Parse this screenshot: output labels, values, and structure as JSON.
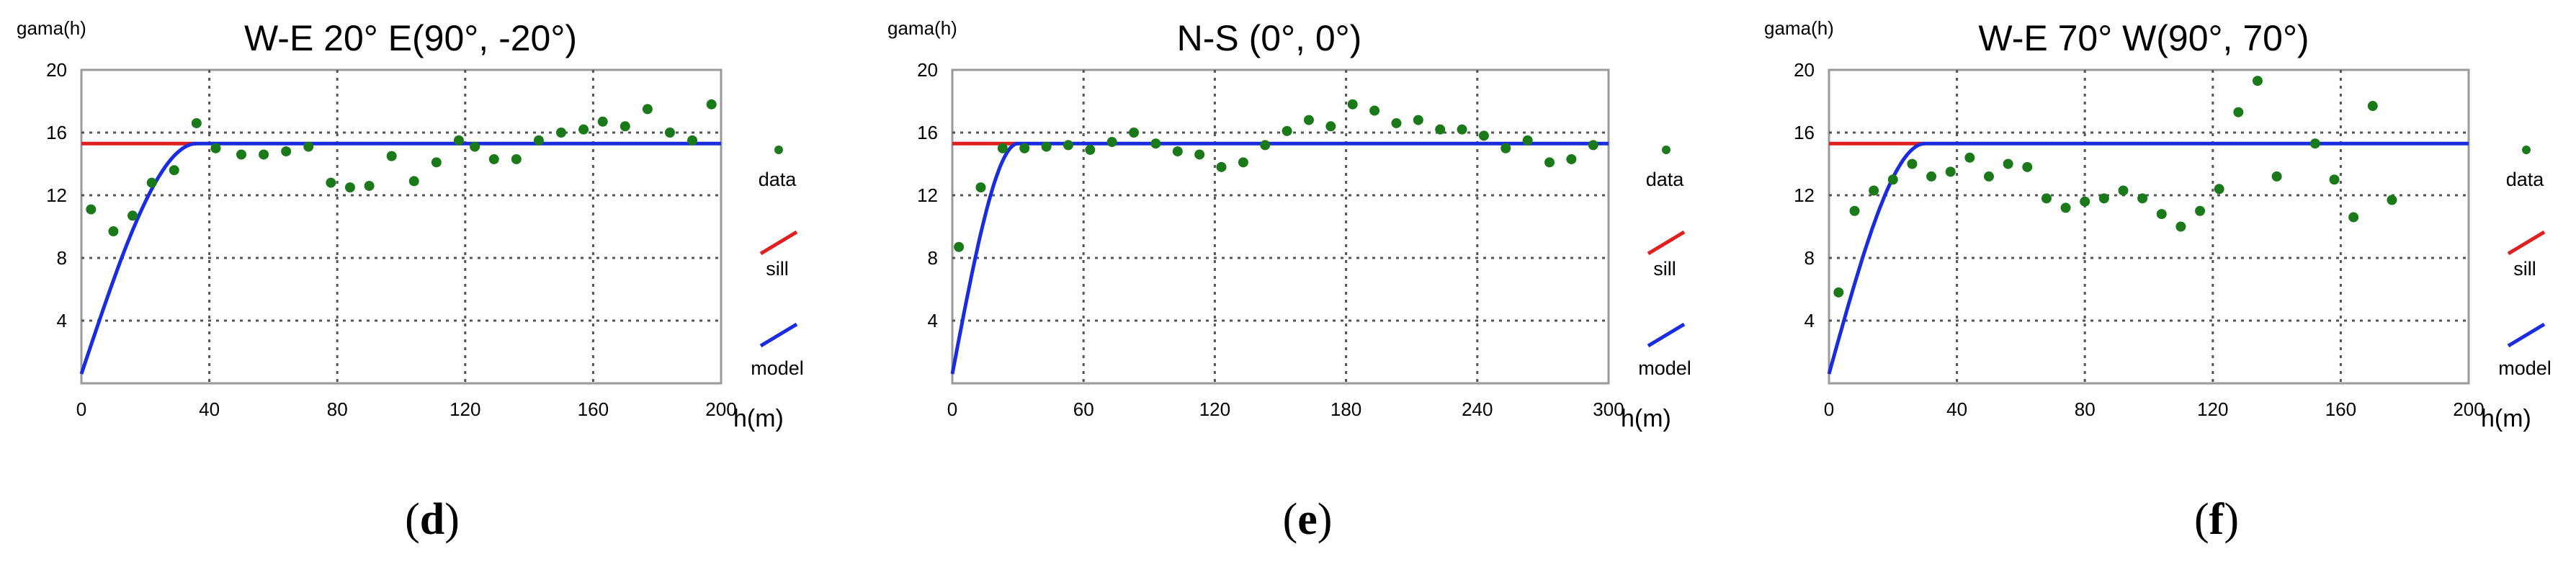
{
  "chart_data": [
    {
      "type": "scatter",
      "panel_label": "d",
      "title": "W-E 20° E(90°, -20°)",
      "ylabel": "gama(h)",
      "xlabel": "h(m)",
      "xlim": [
        0,
        200
      ],
      "ylim": [
        0,
        20
      ],
      "xticks": [
        0,
        40,
        80,
        120,
        160,
        200
      ],
      "yticks": [
        4,
        8,
        12,
        16,
        20
      ],
      "grid": true,
      "legend": "right",
      "sill": 15.3,
      "model_range": 36,
      "series": [
        {
          "name": "data",
          "color": "#1a7a1a",
          "x": [
            3,
            10,
            16,
            22,
            29,
            36,
            42,
            50,
            57,
            64,
            71,
            78,
            84,
            90,
            97,
            104,
            111,
            118,
            123,
            129,
            136,
            143,
            150,
            157,
            163,
            170,
            177,
            184,
            191,
            197
          ],
          "y": [
            11.1,
            9.7,
            10.7,
            12.8,
            13.6,
            16.6,
            15.0,
            14.6,
            14.6,
            14.8,
            15.1,
            12.8,
            12.5,
            12.6,
            14.5,
            12.9,
            14.1,
            15.5,
            15.1,
            14.3,
            14.3,
            15.5,
            16.0,
            16.2,
            16.7,
            16.4,
            17.5,
            16.0,
            15.5,
            17.8
          ]
        },
        {
          "name": "sill",
          "color": "#e02020"
        },
        {
          "name": "model",
          "color": "#1a2ce0"
        }
      ]
    },
    {
      "type": "scatter",
      "panel_label": "e",
      "title": "N-S (0°, 0°)",
      "ylabel": "gama(h)",
      "xlabel": "h(m)",
      "xlim": [
        0,
        300
      ],
      "ylim": [
        0,
        20
      ],
      "xticks": [
        0,
        60,
        120,
        180,
        240,
        300
      ],
      "yticks": [
        4,
        8,
        12,
        16,
        20
      ],
      "grid": true,
      "legend": "right",
      "sill": 15.3,
      "model_range": 30,
      "series": [
        {
          "name": "data",
          "color": "#1a7a1a",
          "x": [
            3,
            13,
            23,
            33,
            43,
            53,
            63,
            73,
            83,
            93,
            103,
            113,
            123,
            133,
            143,
            153,
            163,
            173,
            183,
            193,
            203,
            213,
            223,
            233,
            243,
            253,
            263,
            273,
            283,
            293
          ],
          "y": [
            8.7,
            12.5,
            15.0,
            15.0,
            15.1,
            15.2,
            14.9,
            15.4,
            16.0,
            15.3,
            14.8,
            14.6,
            13.8,
            14.1,
            15.2,
            16.1,
            16.8,
            16.4,
            17.8,
            17.4,
            16.6,
            16.8,
            16.2,
            16.2,
            15.8,
            15.0,
            15.5,
            14.1,
            14.3,
            15.2
          ]
        },
        {
          "name": "sill",
          "color": "#e02020"
        },
        {
          "name": "model",
          "color": "#1a2ce0"
        }
      ]
    },
    {
      "type": "scatter",
      "panel_label": "f",
      "title": "W-E 70° W(90°, 70°)",
      "ylabel": "gama(h)",
      "xlabel": "h(m)",
      "xlim": [
        0,
        200
      ],
      "ylim": [
        0,
        20
      ],
      "xticks": [
        0,
        40,
        80,
        120,
        160,
        200
      ],
      "yticks": [
        4,
        8,
        12,
        16,
        20
      ],
      "grid": true,
      "legend": "right",
      "sill": 15.3,
      "model_range": 30,
      "series": [
        {
          "name": "data",
          "color": "#1a7a1a",
          "x": [
            3,
            8,
            14,
            20,
            26,
            32,
            38,
            44,
            50,
            56,
            62,
            68,
            74,
            80,
            86,
            92,
            98,
            104,
            110,
            116,
            122,
            128,
            134,
            140,
            152,
            158,
            164,
            170,
            176
          ],
          "y": [
            5.8,
            11.0,
            12.3,
            13.0,
            14.0,
            13.2,
            13.5,
            14.4,
            13.2,
            14.0,
            13.8,
            11.8,
            11.2,
            11.6,
            11.8,
            12.3,
            11.8,
            10.8,
            10.0,
            11.0,
            12.4,
            17.3,
            19.3,
            13.2,
            15.3,
            13.0,
            10.6,
            17.7,
            11.7
          ]
        },
        {
          "name": "sill",
          "color": "#e02020"
        },
        {
          "name": "model",
          "color": "#1a2ce0"
        }
      ]
    }
  ]
}
